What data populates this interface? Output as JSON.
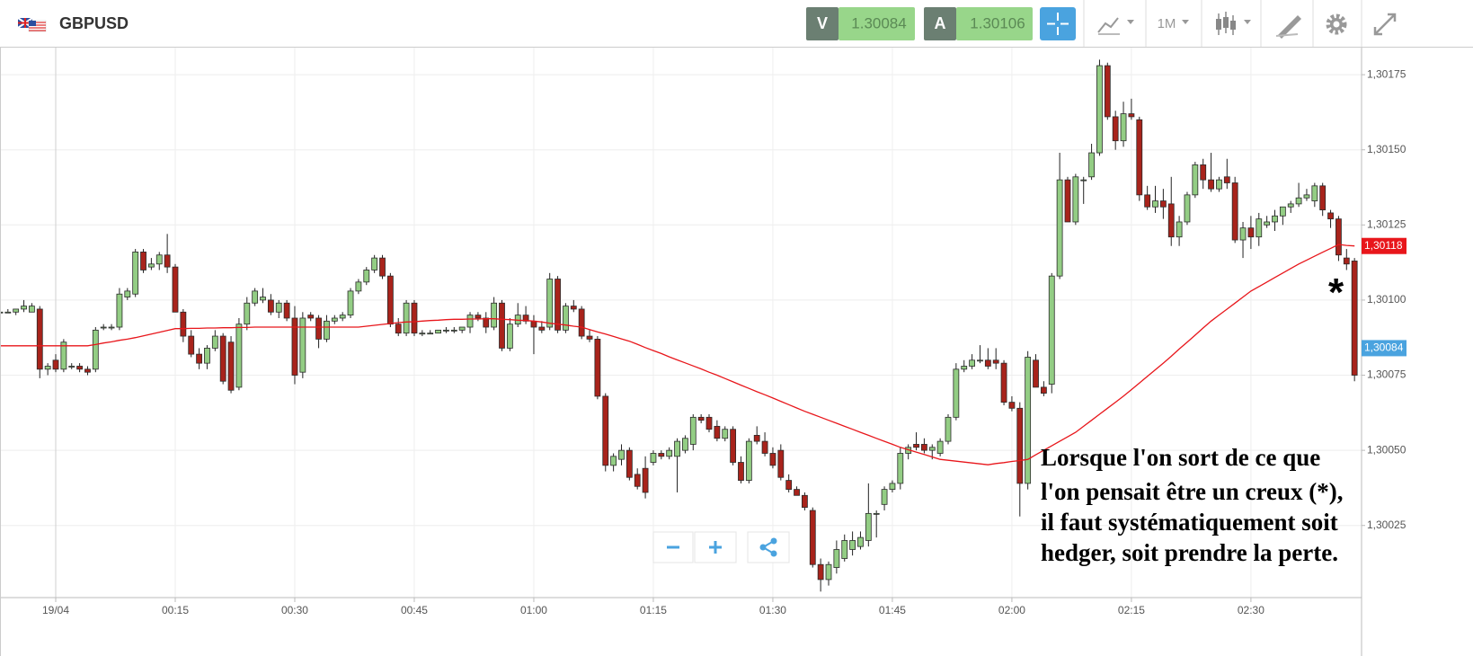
{
  "header": {
    "symbol": "GBPUSD",
    "sell_label": "V",
    "sell_price": "1.30084",
    "buy_label": "A",
    "buy_price": "1.30106",
    "timeframe": "1M"
  },
  "annotation": {
    "marker": "*",
    "lines": [
      "Lorsque l'on sort de ce que",
      "l'on pensait être un creux (*),",
      "il faut systématiquement soit",
      "hedger, soit prendre la perte."
    ]
  },
  "chart_data": {
    "type": "candlestick",
    "up_color": "#93cd84",
    "down_color": "#a8231b",
    "grid": true,
    "ylim": [
      1.30001,
      1.30184
    ],
    "yticks": [
      {
        "value": 1.30025,
        "label": "1,30025"
      },
      {
        "value": 1.3005,
        "label": "1,30050"
      },
      {
        "value": 1.30075,
        "label": "1,30075"
      },
      {
        "value": 1.301,
        "label": "1,30100"
      },
      {
        "value": 1.30125,
        "label": "1,30125"
      },
      {
        "value": 1.3015,
        "label": "1,30150"
      },
      {
        "value": 1.30175,
        "label": "1,30175"
      }
    ],
    "categories": [
      null,
      null,
      null,
      null,
      null,
      null,
      null,
      "19/04",
      null,
      null,
      null,
      null,
      null,
      null,
      null,
      null,
      null,
      null,
      null,
      null,
      null,
      null,
      "00:15",
      null,
      null,
      null,
      null,
      null,
      null,
      null,
      null,
      null,
      null,
      null,
      null,
      null,
      null,
      "00:30",
      null,
      null,
      null,
      null,
      null,
      null,
      null,
      null,
      null,
      null,
      null,
      null,
      null,
      null,
      "00:45",
      null,
      null,
      null,
      null,
      null,
      null,
      null,
      null,
      null,
      null,
      null,
      null,
      null,
      null,
      "01:00",
      null,
      null,
      null,
      null,
      null,
      null,
      null,
      null,
      null,
      null,
      null,
      null,
      null,
      null,
      "01:15",
      null,
      null,
      null,
      null,
      null,
      null,
      null,
      null,
      null,
      null,
      null,
      null,
      null,
      null,
      "01:30",
      null,
      null,
      null,
      null,
      null,
      null,
      null,
      null,
      null,
      null,
      null,
      null,
      null,
      null,
      "01:45",
      null,
      null,
      null,
      null,
      null,
      null,
      null,
      null,
      null,
      null,
      null,
      null,
      null,
      null,
      "02:00",
      null,
      null,
      null,
      null,
      null,
      null,
      null,
      null,
      null,
      null,
      null,
      null,
      null,
      null,
      "02:15",
      null,
      null,
      null,
      null,
      null,
      null,
      null,
      null,
      null,
      null,
      null,
      null,
      null,
      null,
      "02:30",
      null,
      null,
      null,
      null,
      null,
      null,
      null,
      null,
      null,
      null,
      null,
      null,
      null
    ],
    "open": [
      1.30096,
      1.30096,
      1.30096,
      1.30097,
      1.30096,
      1.30097,
      1.30077,
      1.3008,
      1.30077,
      1.30078,
      1.30078,
      1.30077,
      1.30077,
      1.30091,
      1.30091,
      1.30091,
      1.30101,
      1.30102,
      1.30116,
      1.30111,
      1.30112,
      1.30115,
      1.30111,
      1.30096,
      1.30088,
      1.30082,
      1.30079,
      1.30084,
      1.30088,
      1.30086,
      1.30071,
      1.30092,
      1.30099,
      1.301,
      1.301,
      1.30096,
      1.30099,
      1.30094,
      1.30076,
      1.30095,
      1.30094,
      1.30087,
      1.30093,
      1.30094,
      1.30095,
      1.30103,
      1.30106,
      1.3011,
      1.30114,
      1.30108,
      1.30092,
      1.30089,
      1.30099,
      1.30089,
      1.30089,
      1.30089,
      1.3009,
      1.3009,
      1.3009,
      1.30091,
      1.30095,
      1.30094,
      1.30091,
      1.30099,
      1.30084,
      1.30092,
      1.30095,
      1.30093,
      1.30091,
      1.30091,
      1.30107,
      1.3009,
      1.30098,
      1.30097,
      1.30088,
      1.30087,
      1.30068,
      1.30045,
      1.30047,
      1.3005,
      1.30042,
      1.30044,
      1.30046,
      1.30049,
      1.30048,
      1.30048,
      1.3005,
      1.30052,
      1.30061,
      1.30061,
      1.30058,
      1.30054,
      1.30057,
      1.30046,
      1.3004,
      1.30055,
      1.30053,
      1.30049,
      1.3005,
      1.3004,
      1.30037,
      1.30035,
      1.3003,
      1.30012,
      1.30007,
      1.30011,
      1.30014,
      1.30017,
      1.30018,
      1.3002,
      1.30029,
      1.30032,
      1.30037,
      1.30039,
      1.30049,
      1.30052,
      1.30052,
      1.3005,
      1.30049,
      1.30053,
      1.30061,
      1.30077,
      1.30078,
      1.3008,
      1.3008,
      1.3008,
      1.30079,
      1.30066,
      1.30064,
      1.30039,
      1.3008,
      1.30071,
      1.30072,
      1.30108,
      1.3014,
      1.30126,
      1.3014,
      1.30141,
      1.30149,
      1.30178,
      1.30161,
      1.30153,
      1.30162,
      1.3016,
      1.30135,
      1.30131,
      1.30133,
      1.30132,
      1.30121,
      1.30126,
      1.30135,
      1.30145,
      1.3014,
      1.30137,
      1.30141,
      1.30139,
      1.3012,
      1.30124,
      1.30121,
      1.30125,
      1.30126,
      1.30128,
      1.30131,
      1.30132,
      1.30134,
      1.30133,
      1.30138,
      1.30129,
      1.30127,
      1.30114,
      1.30113
    ],
    "high": [
      1.30097,
      1.30097,
      1.30097,
      1.301,
      1.30099,
      1.30098,
      1.30079,
      1.30082,
      1.30087,
      1.30079,
      1.30079,
      1.30078,
      1.30091,
      1.30092,
      1.30092,
      1.30104,
      1.30104,
      1.30117,
      1.30117,
      1.30114,
      1.30116,
      1.30122,
      1.30112,
      1.30097,
      1.3009,
      1.30084,
      1.30085,
      1.3009,
      1.30089,
      1.30088,
      1.30094,
      1.30101,
      1.30104,
      1.30104,
      1.30102,
      1.301,
      1.301,
      1.30098,
      1.30096,
      1.30096,
      1.30095,
      1.30095,
      1.30095,
      1.30096,
      1.30104,
      1.30107,
      1.30111,
      1.30115,
      1.30115,
      1.30109,
      1.30094,
      1.301,
      1.301,
      1.3009,
      1.3009,
      1.3009,
      1.30091,
      1.30091,
      1.30091,
      1.30096,
      1.30096,
      1.30096,
      1.30101,
      1.301,
      1.30094,
      1.30099,
      1.30098,
      1.30095,
      1.30093,
      1.30109,
      1.30108,
      1.30099,
      1.301,
      1.30098,
      1.3009,
      1.30088,
      1.30069,
      1.30049,
      1.30052,
      1.30051,
      1.30044,
      1.30048,
      1.3005,
      1.3005,
      1.30051,
      1.30054,
      1.30055,
      1.30062,
      1.30062,
      1.30062,
      1.3006,
      1.30058,
      1.30058,
      1.30048,
      1.30054,
      1.30058,
      1.30056,
      1.30051,
      1.30052,
      1.30042,
      1.30038,
      1.30036,
      1.30031,
      1.30014,
      1.30013,
      1.3002,
      1.30022,
      1.30023,
      1.30023,
      1.30039,
      1.3003,
      1.30038,
      1.3004,
      1.30051,
      1.30052,
      1.30056,
      1.30054,
      1.30052,
      1.30054,
      1.30062,
      1.30079,
      1.3008,
      1.30082,
      1.30085,
      1.30084,
      1.30084,
      1.3008,
      1.30068,
      1.30066,
      1.30083,
      1.30082,
      1.30073,
      1.30109,
      1.30149,
      1.30141,
      1.30142,
      1.30141,
      1.30152,
      1.3018,
      1.30179,
      1.30163,
      1.30166,
      1.30167,
      1.30161,
      1.30138,
      1.30138,
      1.30137,
      1.30141,
      1.30128,
      1.30136,
      1.30146,
      1.30147,
      1.30149,
      1.30141,
      1.30147,
      1.30141,
      1.30126,
      1.30128,
      1.30129,
      1.30128,
      1.3013,
      1.30131,
      1.30133,
      1.30139,
      1.30137,
      1.30139,
      1.30139,
      1.3013,
      1.30128,
      1.30117,
      1.30114
    ],
    "low": [
      1.30096,
      1.30096,
      1.30095,
      1.30096,
      1.30096,
      1.30074,
      1.30075,
      1.30076,
      1.30076,
      1.30077,
      1.30076,
      1.30075,
      1.30076,
      1.3009,
      1.3009,
      1.3009,
      1.301,
      1.30101,
      1.30109,
      1.3011,
      1.3011,
      1.30109,
      1.30096,
      1.30086,
      1.30081,
      1.30077,
      1.30077,
      1.30083,
      1.30072,
      1.30069,
      1.3007,
      1.3009,
      1.30098,
      1.30099,
      1.30095,
      1.30094,
      1.30093,
      1.30072,
      1.30074,
      1.30093,
      1.30084,
      1.30086,
      1.30092,
      1.30093,
      1.30094,
      1.30102,
      1.30105,
      1.30109,
      1.30107,
      1.30091,
      1.30088,
      1.30088,
      1.30088,
      1.30088,
      1.30089,
      1.30089,
      1.30089,
      1.30089,
      1.30089,
      1.30089,
      1.30093,
      1.30089,
      1.3009,
      1.30083,
      1.30083,
      1.30091,
      1.30092,
      1.30082,
      1.30089,
      1.3009,
      1.30089,
      1.30089,
      1.30096,
      1.30087,
      1.30086,
      1.30067,
      1.30043,
      1.30043,
      1.30045,
      1.3004,
      1.30037,
      1.30034,
      1.30045,
      1.30047,
      1.30047,
      1.30036,
      1.30049,
      1.3005,
      1.30059,
      1.30056,
      1.30053,
      1.30053,
      1.30045,
      1.30039,
      1.30039,
      1.30052,
      1.30048,
      1.30044,
      1.3004,
      1.30036,
      1.30035,
      1.3003,
      1.30011,
      1.30003,
      1.30005,
      1.30009,
      1.30013,
      1.30015,
      1.30017,
      1.30018,
      1.30021,
      1.3003,
      1.30036,
      1.30037,
      1.30047,
      1.3005,
      1.30049,
      1.30047,
      1.30048,
      1.30052,
      1.3006,
      1.30076,
      1.30077,
      1.30079,
      1.30077,
      1.30077,
      1.30065,
      1.30063,
      1.30028,
      1.30037,
      1.30071,
      1.30068,
      1.30069,
      1.30107,
      1.30126,
      1.30125,
      1.30132,
      1.3014,
      1.30148,
      1.3016,
      1.3015,
      1.30151,
      1.3016,
      1.30133,
      1.3013,
      1.30129,
      1.30127,
      1.30118,
      1.30118,
      1.30125,
      1.30134,
      1.30137,
      1.30136,
      1.30136,
      1.30137,
      1.30119,
      1.30114,
      1.30117,
      1.30118,
      1.30124,
      1.30123,
      1.30125,
      1.30129,
      1.30131,
      1.30133,
      1.30131,
      1.30128,
      1.30124,
      1.30113,
      1.3011,
      1.30073
    ],
    "close": [
      1.30096,
      1.30096,
      1.30097,
      1.30098,
      1.30098,
      1.30077,
      1.30078,
      1.30077,
      1.30086,
      1.30078,
      1.30077,
      1.30076,
      1.3009,
      1.30091,
      1.30091,
      1.30102,
      1.30103,
      1.30116,
      1.3011,
      1.30112,
      1.30115,
      1.30111,
      1.30096,
      1.30088,
      1.30082,
      1.30079,
      1.30084,
      1.30088,
      1.30073,
      1.3007,
      1.30092,
      1.30099,
      1.30103,
      1.30101,
      1.30096,
      1.30099,
      1.30094,
      1.30075,
      1.30094,
      1.30094,
      1.30087,
      1.30093,
      1.30094,
      1.30095,
      1.30103,
      1.30106,
      1.3011,
      1.30114,
      1.30108,
      1.30092,
      1.30089,
      1.30099,
      1.30089,
      1.30089,
      1.30089,
      1.3009,
      1.3009,
      1.3009,
      1.30091,
      1.30095,
      1.30094,
      1.30091,
      1.30099,
      1.30084,
      1.30092,
      1.30095,
      1.30093,
      1.30091,
      1.3009,
      1.30107,
      1.3009,
      1.30098,
      1.30097,
      1.30088,
      1.30087,
      1.30068,
      1.30045,
      1.30048,
      1.3005,
      1.30041,
      1.30038,
      1.30036,
      1.30049,
      1.30048,
      1.3005,
      1.30053,
      1.30054,
      1.30061,
      1.3006,
      1.30057,
      1.30054,
      1.30057,
      1.30046,
      1.3004,
      1.30053,
      1.30053,
      1.30049,
      1.30045,
      1.30041,
      1.30037,
      1.30035,
      1.30031,
      1.30012,
      1.30007,
      1.30012,
      1.30017,
      1.3002,
      1.3002,
      1.30021,
      1.30029,
      1.30029,
      1.30037,
      1.30039,
      1.30049,
      1.30051,
      1.30051,
      1.3005,
      1.30051,
      1.30053,
      1.30061,
      1.30077,
      1.30078,
      1.3008,
      1.3008,
      1.30078,
      1.30079,
      1.30066,
      1.30064,
      1.30039,
      1.30081,
      1.30071,
      1.30069,
      1.30108,
      1.3014,
      1.30126,
      1.30141,
      1.3014,
      1.30149,
      1.30178,
      1.30161,
      1.30153,
      1.30162,
      1.30161,
      1.30135,
      1.30131,
      1.30133,
      1.30131,
      1.30121,
      1.30126,
      1.30135,
      1.30145,
      1.3014,
      1.30137,
      1.3014,
      1.30139,
      1.3012,
      1.30124,
      1.30121,
      1.30127,
      1.30126,
      1.30128,
      1.30131,
      1.30132,
      1.30134,
      1.30135,
      1.30138,
      1.3013,
      1.30127,
      1.30115,
      1.30112,
      1.30075
    ],
    "moving_average": {
      "color": "#e8161b",
      "values": [
        1.300848,
        1.300848,
        1.300848,
        1.300848,
        1.300848,
        1.300848,
        1.300848,
        1.300848,
        1.300848,
        1.300848,
        1.300848,
        1.300848,
        1.300852,
        1.300857,
        1.300861,
        1.300866,
        1.30087,
        1.300875,
        1.300881,
        1.300887,
        1.300893,
        1.300899,
        1.300905,
        1.300905,
        1.300906,
        1.300906,
        1.300907,
        1.300907,
        1.300908,
        1.300908,
        1.300909,
        1.300909,
        1.30091,
        1.30091,
        1.30091,
        1.30091,
        1.30091,
        1.30091,
        1.30091,
        1.30091,
        1.30091,
        1.30091,
        1.30091,
        1.30091,
        1.30091,
        1.30091,
        1.300913,
        1.300916,
        1.300919,
        1.300922,
        1.300925,
        1.300927,
        1.300928,
        1.30093,
        1.300932,
        1.300933,
        1.300935,
        1.300936,
        1.300936,
        1.300937,
        1.300937,
        1.300938,
        1.300938,
        1.300936,
        1.300935,
        1.300933,
        1.300932,
        1.30093,
        1.300927,
        1.300923,
        1.30092,
        1.300917,
        1.300913,
        1.30091,
        1.300902,
        1.300894,
        1.300887,
        1.300879,
        1.300871,
        1.300863,
        1.300853,
        1.300842,
        1.300832,
        1.300822,
        1.300811,
        1.300801,
        1.300791,
        1.300781,
        1.300771,
        1.30076,
        1.30075,
        1.300739,
        1.300728,
        1.300717,
        1.300706,
        1.300695,
        1.300685,
        1.300674,
        1.300663,
        1.300652,
        1.300641,
        1.30063,
        1.30062,
        1.30061,
        1.3006,
        1.30059,
        1.30058,
        1.30057,
        1.30056,
        1.30055,
        1.30054,
        1.30053,
        1.30052,
        1.30051,
        1.300502,
        1.300494,
        1.300486,
        1.300478,
        1.30047,
        1.300467,
        1.300464,
        1.300461,
        1.300458,
        1.300455,
        1.300452,
        1.300456,
        1.300459,
        1.300463,
        1.300466,
        1.30047,
        1.300485,
        1.3005,
        1.300515,
        1.30053,
        1.300545,
        1.30056,
        1.30058,
        1.3006,
        1.30062,
        1.30064,
        1.30066,
        1.30068,
        1.300702,
        1.300724,
        1.300746,
        1.300768,
        1.30079,
        1.300813,
        1.300837,
        1.30086,
        1.300883,
        1.300907,
        1.30093,
        1.30095,
        1.30097,
        1.30099,
        1.30101,
        1.30103,
        1.301045,
        1.30106,
        1.301075,
        1.30109,
        1.301105,
        1.30112,
        1.301133,
        1.301146,
        1.301159,
        1.301172,
        1.301185,
        1.301182,
        1.30118
      ]
    },
    "price_tags": [
      {
        "value": 1.30118,
        "label": "1,30118",
        "color": "#e8161b"
      },
      {
        "value": 1.30084,
        "label": "1,30084",
        "color": "#4aa3df"
      }
    ]
  }
}
